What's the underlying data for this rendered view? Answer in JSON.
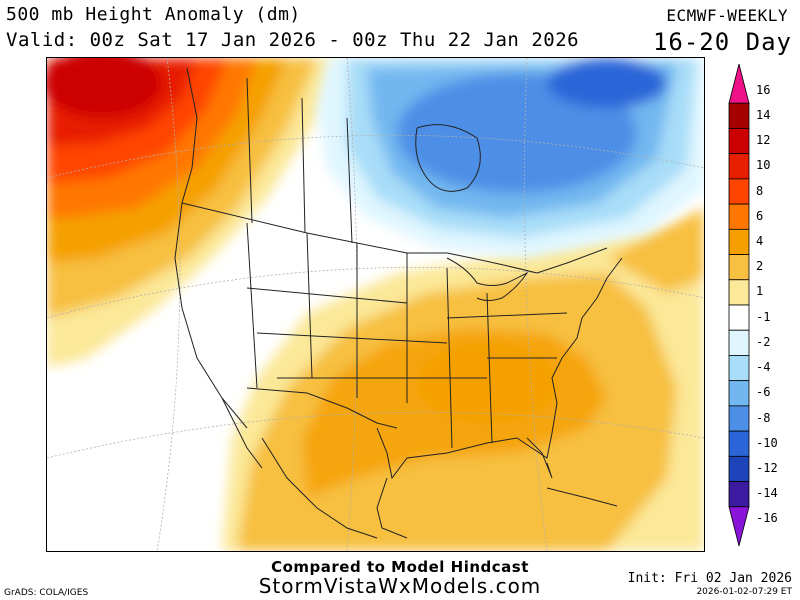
{
  "header": {
    "title": "500 mb Height Anomaly (dm)",
    "valid": "Valid: 00z Sat 17 Jan 2026 - 00z Thu 22 Jan 2026",
    "model": "ECMWF-WEEKLY",
    "days": "16-20 Day"
  },
  "legend": {
    "labels": [
      "16",
      "14",
      "12",
      "10",
      "8",
      "6",
      "4",
      "2",
      "1",
      "-1",
      "-2",
      "-4",
      "-6",
      "-8",
      "-10",
      "-12",
      "-14",
      "-16"
    ],
    "colors": [
      "#ee1188",
      "#a50000",
      "#cc0000",
      "#e81e00",
      "#ff4400",
      "#ff7700",
      "#f5a000",
      "#f7c040",
      "#fbe898",
      "#ffffff",
      "#dff6ff",
      "#a8ddf8",
      "#72b7f0",
      "#4d8fe6",
      "#2a66d8",
      "#1d44b8",
      "#3c1ba0",
      "#8a14d8"
    ]
  },
  "footer": {
    "caption": "Compared to Model Hindcast",
    "site": "StormVistaWxModels.com",
    "grads": "GrADS: COLA/IGES",
    "init": "Init: Fri 02 Jan 2026",
    "timestamp": "2026-01-02-07:29 ET"
  }
}
